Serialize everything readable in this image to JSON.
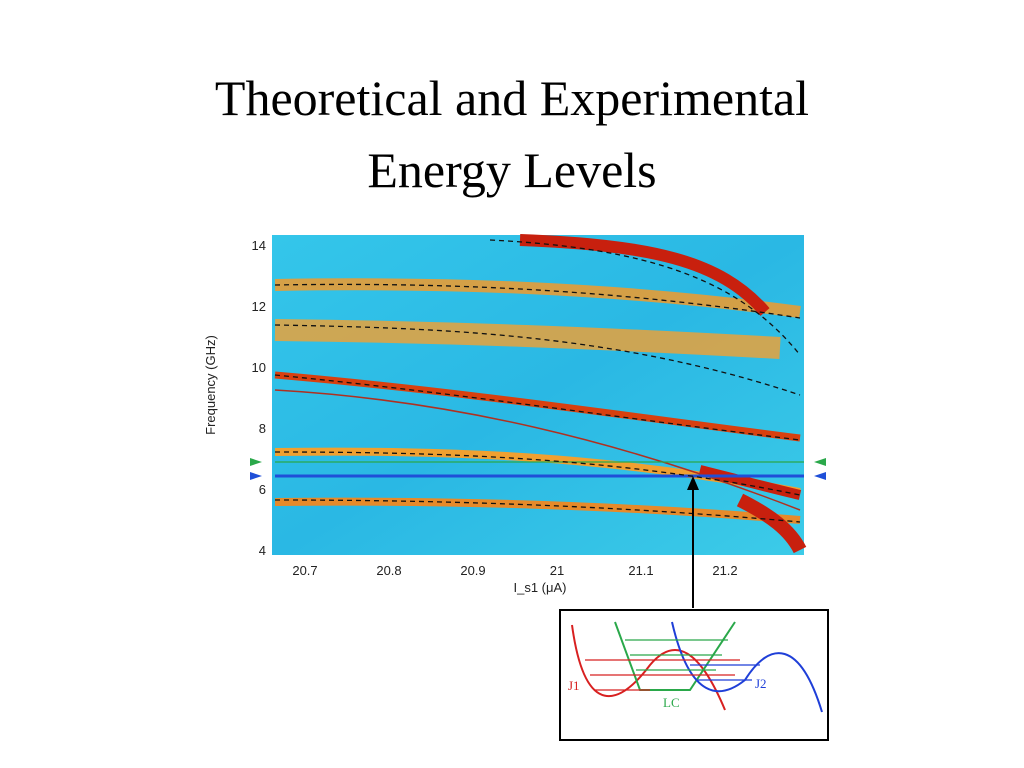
{
  "title": {
    "lines": [
      "Theoretical and Experimental",
      "Energy Levels"
    ]
  },
  "figure": {
    "y_axis": {
      "label": "Frequency (GHz)",
      "ticks": [
        "14",
        "12",
        "10",
        "8",
        "6",
        "4"
      ]
    },
    "x_axis": {
      "label": "I_s1 (μA)",
      "ticks": [
        "20.7",
        "20.8",
        "20.9",
        "21",
        "21.1",
        "21.2"
      ]
    },
    "inset": {
      "labels": [
        "J1",
        "LC",
        "J2"
      ]
    }
  }
}
